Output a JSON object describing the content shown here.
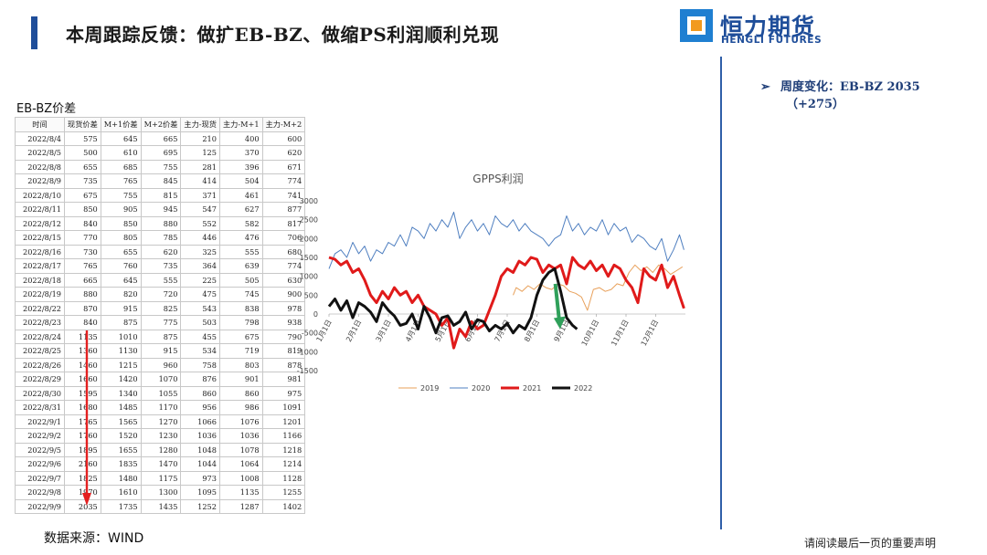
{
  "header": {
    "title": "本周跟踪反馈：做扩EB-BZ、做缩PS利润顺利兑现",
    "logo_cn": "恒力期货",
    "logo_en": "HENGLI FUTURES"
  },
  "note": {
    "arrow": "➢",
    "line1": "周度变化：EB-BZ 2035",
    "line2": "（+275）"
  },
  "table": {
    "title": "EB-BZ价差",
    "headers": [
      "时间",
      "现货价差",
      "M+1价差",
      "M+2价差",
      "主力-现货",
      "主力-M+1",
      "主力-M+2"
    ],
    "rows": [
      [
        "2022/8/4",
        "575",
        "645",
        "665",
        "210",
        "400",
        "600"
      ],
      [
        "2022/8/5",
        "500",
        "610",
        "695",
        "125",
        "370",
        "620"
      ],
      [
        "2022/8/8",
        "655",
        "685",
        "755",
        "281",
        "396",
        "671"
      ],
      [
        "2022/8/9",
        "735",
        "765",
        "845",
        "414",
        "504",
        "774"
      ],
      [
        "2022/8/10",
        "675",
        "755",
        "815",
        "371",
        "461",
        "741"
      ],
      [
        "2022/8/11",
        "850",
        "905",
        "945",
        "547",
        "627",
        "877"
      ],
      [
        "2022/8/12",
        "840",
        "850",
        "880",
        "552",
        "582",
        "817"
      ],
      [
        "2022/8/15",
        "770",
        "805",
        "785",
        "446",
        "476",
        "706"
      ],
      [
        "2022/8/16",
        "730",
        "655",
        "620",
        "325",
        "555",
        "680"
      ],
      [
        "2022/8/17",
        "765",
        "760",
        "735",
        "364",
        "639",
        "774"
      ],
      [
        "2022/8/18",
        "665",
        "645",
        "555",
        "225",
        "505",
        "630"
      ],
      [
        "2022/8/19",
        "880",
        "820",
        "720",
        "475",
        "745",
        "900"
      ],
      [
        "2022/8/22",
        "870",
        "915",
        "825",
        "543",
        "838",
        "978"
      ],
      [
        "2022/8/23",
        "840",
        "875",
        "775",
        "503",
        "798",
        "938"
      ],
      [
        "2022/8/24",
        "1135",
        "1010",
        "875",
        "455",
        "675",
        "790"
      ],
      [
        "2022/8/25",
        "1360",
        "1130",
        "915",
        "534",
        "719",
        "819"
      ],
      [
        "2022/8/26",
        "1460",
        "1215",
        "960",
        "758",
        "803",
        "878"
      ],
      [
        "2022/8/29",
        "1660",
        "1420",
        "1070",
        "876",
        "901",
        "981"
      ],
      [
        "2022/8/30",
        "1595",
        "1340",
        "1055",
        "860",
        "860",
        "975"
      ],
      [
        "2022/8/31",
        "1680",
        "1485",
        "1170",
        "956",
        "986",
        "1091"
      ],
      [
        "2022/9/1",
        "1765",
        "1565",
        "1270",
        "1066",
        "1076",
        "1201"
      ],
      [
        "2022/9/2",
        "1760",
        "1520",
        "1230",
        "1036",
        "1036",
        "1166"
      ],
      [
        "2022/9/5",
        "1895",
        "1655",
        "1280",
        "1048",
        "1078",
        "1218"
      ],
      [
        "2022/9/6",
        "2160",
        "1835",
        "1470",
        "1044",
        "1064",
        "1214"
      ],
      [
        "2022/9/7",
        "1825",
        "1480",
        "1175",
        "973",
        "1008",
        "1128"
      ],
      [
        "2022/9/8",
        "1970",
        "1610",
        "1300",
        "1095",
        "1135",
        "1255"
      ],
      [
        "2022/9/9",
        "2035",
        "1735",
        "1435",
        "1252",
        "1287",
        "1402"
      ]
    ]
  },
  "chart_data": {
    "type": "line",
    "title": "GPPS利润",
    "ylim": [
      -1500,
      3000
    ],
    "yticks": [
      3000,
      2500,
      2000,
      1500,
      1000,
      500,
      0,
      -500,
      -1000,
      -1500
    ],
    "xticks": [
      "1月1日",
      "2月1日",
      "3月1日",
      "4月1日",
      "5月1日",
      "6月1日",
      "7月1日",
      "8月1日",
      "9月1日",
      "10月1日",
      "11月1日",
      "12月1日"
    ],
    "x_months": [
      1,
      13
    ],
    "series": [
      {
        "name": "2019",
        "color": "#e8a05a",
        "width": 1,
        "x": [
          7.2,
          7.3,
          7.5,
          7.7,
          7.9,
          8.1,
          8.3,
          8.5,
          8.7,
          8.9,
          9.1,
          9.3,
          9.5,
          9.7,
          9.9,
          10.1,
          10.3,
          10.5,
          10.7,
          10.9,
          11.1,
          11.3,
          11.5,
          11.7,
          11.9,
          12.1,
          12.3,
          12.5,
          12.7,
          12.9
        ],
        "y": [
          500,
          700,
          600,
          750,
          650,
          800,
          700,
          650,
          800,
          750,
          600,
          550,
          450,
          100,
          650,
          700,
          600,
          650,
          800,
          750,
          1100,
          1300,
          1150,
          1250,
          1100,
          1300,
          1200,
          1050,
          1150,
          1250
        ]
      },
      {
        "name": "2020",
        "color": "#4f7fc0",
        "width": 1,
        "x": [
          1.0,
          1.2,
          1.4,
          1.6,
          1.8,
          2.0,
          2.2,
          2.4,
          2.6,
          2.8,
          3.0,
          3.2,
          3.4,
          3.6,
          3.8,
          4.0,
          4.2,
          4.4,
          4.6,
          4.8,
          5.0,
          5.2,
          5.4,
          5.6,
          5.8,
          6.0,
          6.2,
          6.4,
          6.6,
          6.8,
          7.0,
          7.2,
          7.4,
          7.6,
          7.8,
          8.0,
          8.2,
          8.4,
          8.6,
          8.8,
          9.0,
          9.2,
          9.4,
          9.6,
          9.8,
          10.0,
          10.2,
          10.4,
          10.6,
          10.8,
          11.0,
          11.2,
          11.4,
          11.6,
          11.8,
          12.0,
          12.2,
          12.4,
          12.6,
          12.8,
          12.95
        ],
        "y": [
          1200,
          1600,
          1700,
          1500,
          1900,
          1600,
          1800,
          1400,
          1700,
          1600,
          1900,
          1800,
          2100,
          1800,
          2300,
          2200,
          2000,
          2400,
          2200,
          2500,
          2300,
          2700,
          2000,
          2300,
          2500,
          2200,
          2400,
          2100,
          2600,
          2400,
          2300,
          2500,
          2200,
          2400,
          2200,
          2100,
          2000,
          1800,
          2000,
          2100,
          2600,
          2200,
          2400,
          2100,
          2300,
          2200,
          2500,
          2100,
          2400,
          2200,
          2300,
          1900,
          2100,
          2000,
          1800,
          1700,
          2000,
          1400,
          1700,
          2100,
          1700
        ]
      },
      {
        "name": "2021",
        "color": "#e01a1a",
        "width": 3,
        "x": [
          1.0,
          1.2,
          1.4,
          1.6,
          1.8,
          2.0,
          2.2,
          2.4,
          2.6,
          2.8,
          3.0,
          3.2,
          3.4,
          3.6,
          3.8,
          4.0,
          4.2,
          4.4,
          4.6,
          4.8,
          5.0,
          5.2,
          5.4,
          5.6,
          5.8,
          6.0,
          6.2,
          6.4,
          6.6,
          6.8,
          7.0,
          7.2,
          7.4,
          7.6,
          7.8,
          8.0,
          8.2,
          8.4,
          8.6,
          8.8,
          9.0,
          9.2,
          9.4,
          9.6,
          9.8,
          10.0,
          10.2,
          10.4,
          10.6,
          10.8,
          11.0,
          11.2,
          11.4,
          11.6,
          11.8,
          12.0,
          12.2,
          12.4,
          12.6,
          12.8,
          12.95
        ],
        "y": [
          1500,
          1450,
          1300,
          1400,
          1100,
          1200,
          900,
          500,
          300,
          600,
          400,
          700,
          500,
          600,
          300,
          500,
          200,
          100,
          0,
          -300,
          -100,
          -900,
          -400,
          -600,
          -200,
          -400,
          -300,
          100,
          500,
          1000,
          1200,
          1100,
          1400,
          1300,
          1500,
          1450,
          1100,
          1300,
          1200,
          1300,
          800,
          1500,
          1300,
          1200,
          1400,
          1150,
          1300,
          1000,
          1300,
          1200,
          900,
          700,
          300,
          1200,
          1000,
          900,
          1300,
          700,
          1000,
          500,
          150
        ]
      },
      {
        "name": "2022",
        "color": "#111111",
        "width": 3,
        "x": [
          1.0,
          1.2,
          1.4,
          1.6,
          1.8,
          2.0,
          2.2,
          2.4,
          2.6,
          2.8,
          3.0,
          3.2,
          3.4,
          3.6,
          3.8,
          4.0,
          4.2,
          4.4,
          4.6,
          4.8,
          5.0,
          5.2,
          5.4,
          5.6,
          5.8,
          6.0,
          6.2,
          6.4,
          6.6,
          6.8,
          7.0,
          7.2,
          7.4,
          7.6,
          7.8,
          8.0,
          8.2,
          8.4,
          8.6,
          8.8,
          9.0,
          9.2,
          9.35
        ],
        "y": [
          200,
          400,
          100,
          350,
          -100,
          300,
          200,
          50,
          -200,
          300,
          100,
          -50,
          -300,
          -250,
          0,
          -400,
          200,
          -100,
          -500,
          -100,
          -50,
          -300,
          -200,
          50,
          -400,
          -150,
          -200,
          -450,
          -300,
          -400,
          -250,
          -500,
          -300,
          -400,
          -100,
          500,
          900,
          1100,
          1200,
          600,
          -100,
          -300,
          -400
        ]
      }
    ],
    "annotation": "green arrow pointing down near 9月1日"
  },
  "footer": {
    "source": "数据来源：WIND",
    "disclaimer": "请阅读最后一页的重要声明"
  }
}
